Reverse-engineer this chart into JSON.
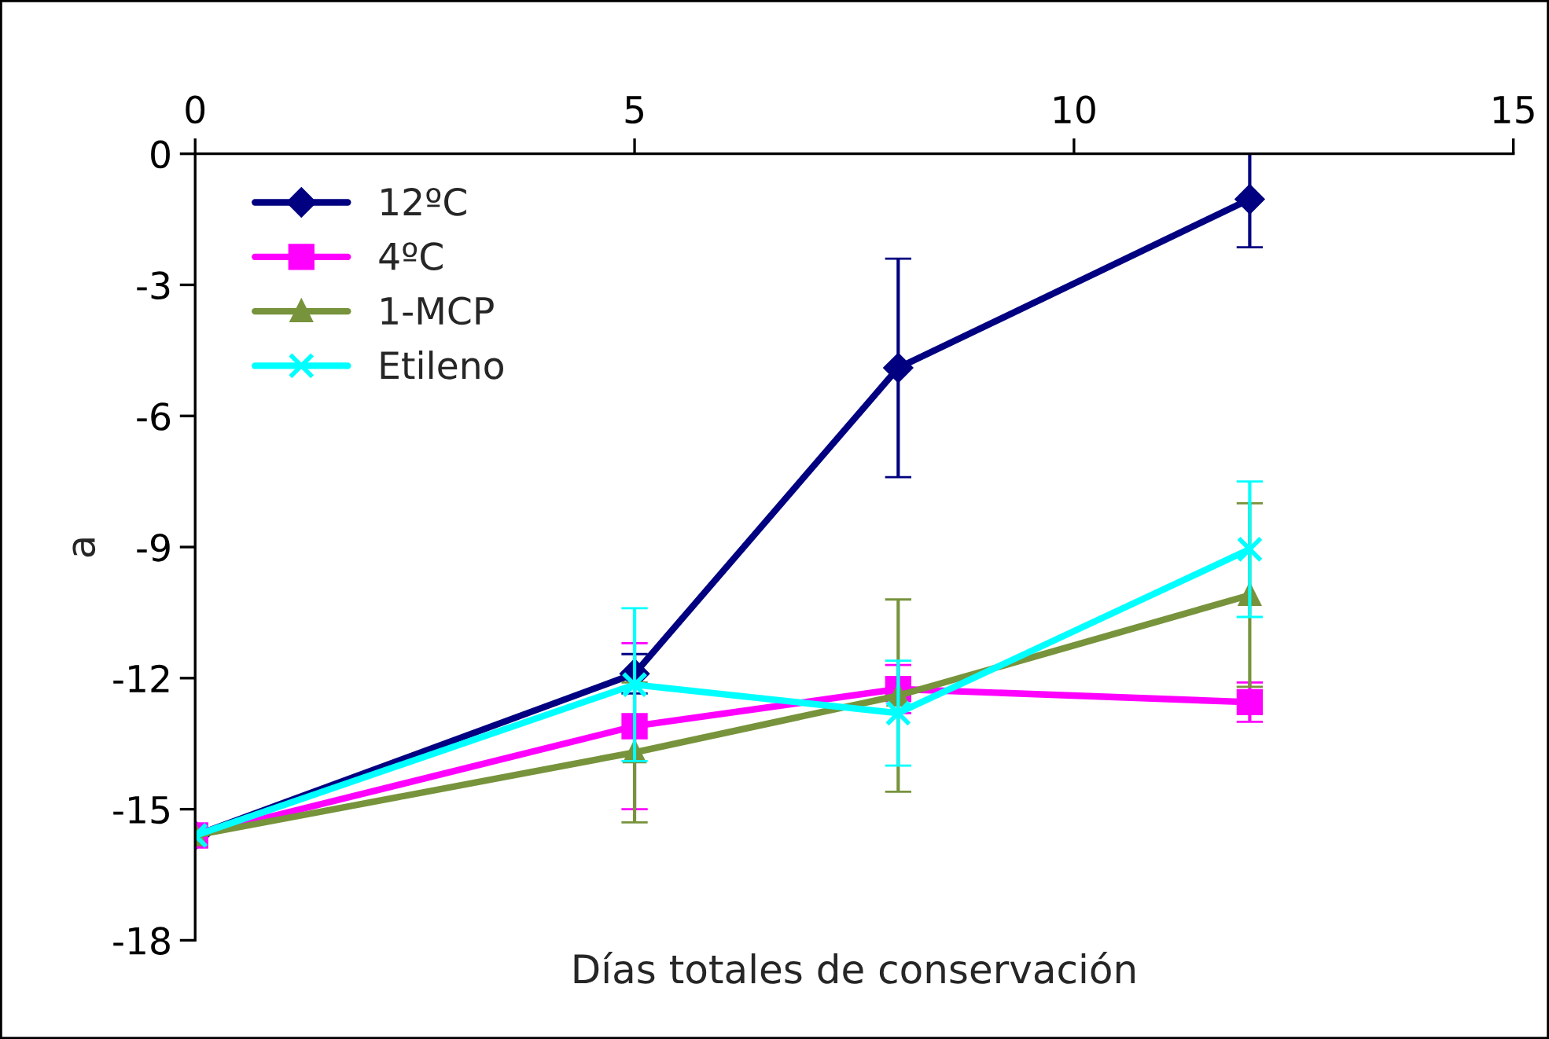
{
  "chart_data": {
    "type": "line",
    "xlabel": "Días totales de conservación",
    "ylabel": "a",
    "xlim": [
      0,
      15
    ],
    "xticks": [
      0,
      5,
      10,
      15
    ],
    "ylim": [
      -18,
      0
    ],
    "yticks": [
      -18,
      -15,
      -12,
      -9,
      -6,
      -3,
      0
    ],
    "grid": false,
    "legend": "top left",
    "series": [
      {
        "name": "12ºC",
        "color": "#000080",
        "marker": "diamond",
        "x": [
          0,
          5,
          8,
          12
        ],
        "values": [
          -15.6,
          -11.9,
          -4.9,
          -1.04
        ],
        "errors": [
          null,
          0.45,
          2.5,
          1.1
        ]
      },
      {
        "name": "4ºC",
        "color": "#ff00ff",
        "marker": "square",
        "x": [
          0,
          5,
          8,
          12
        ],
        "values": [
          -15.6,
          -13.1,
          -12.25,
          -12.55
        ],
        "errors": [
          null,
          1.9,
          0.55,
          0.45
        ]
      },
      {
        "name": "1-MCP",
        "color": "#77933c",
        "marker": "triangle",
        "x": [
          0,
          5,
          8,
          12
        ],
        "values": [
          -15.6,
          -13.7,
          -12.4,
          -10.1
        ],
        "errors": [
          null,
          1.6,
          2.2,
          2.1
        ]
      },
      {
        "name": "Etileno",
        "color": "#00ffff",
        "marker": "cross",
        "x": [
          0,
          5,
          8,
          12
        ],
        "values": [
          -15.6,
          -12.15,
          -12.8,
          -9.05
        ],
        "errors": [
          null,
          1.75,
          1.2,
          1.55
        ]
      }
    ]
  }
}
